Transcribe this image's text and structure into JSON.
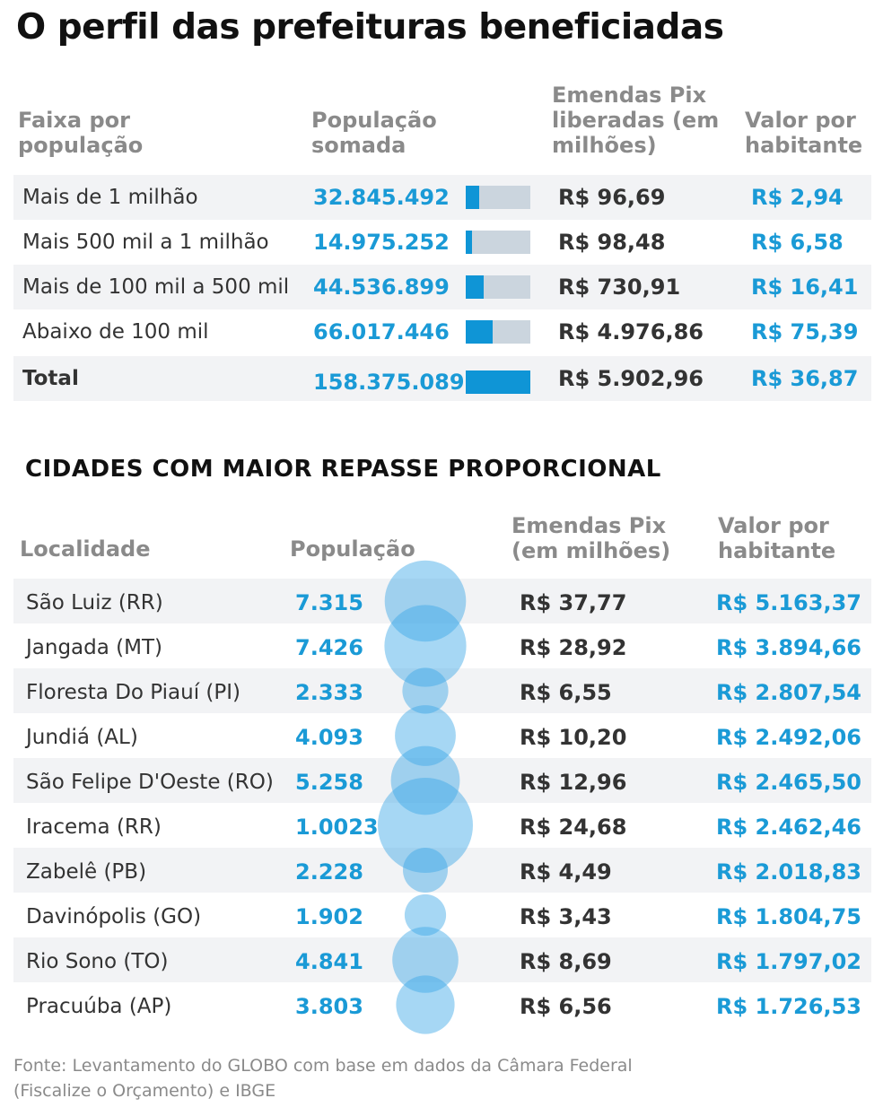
{
  "title": "O perfil das prefeituras beneficiadas",
  "table1": {
    "headers": [
      "Faixa por população",
      "População somada",
      "Emendas Pix liberadas (em milhões)",
      "Valor por habitante"
    ],
    "rows": [
      {
        "faixa": "Mais de 1 milhão",
        "populacao": "32.845.492",
        "emendas": "R$ 96,69",
        "valor": "R$ 2,94",
        "share": 0.207
      },
      {
        "faixa": "Mais 500 mil a 1 milhão",
        "populacao": "14.975.252",
        "emendas": "R$ 98,48",
        "valor": "R$ 6,58",
        "share": 0.095
      },
      {
        "faixa": "Mais de 100 mil a 500 mil",
        "populacao": "44.536.899",
        "emendas": "R$ 730,91",
        "valor": "R$ 16,41",
        "share": 0.281
      },
      {
        "faixa": "Abaixo de 100 mil",
        "populacao": "66.017.446",
        "emendas": "R$ 4.976,86",
        "valor": "R$ 75,39",
        "share": 0.417
      }
    ],
    "total": {
      "faixa": "Total",
      "populacao": "158.375.089",
      "emendas": "R$ 5.902,96",
      "valor": "R$ 36,87",
      "share": 1.0
    }
  },
  "section2_title": "CIDADES COM MAIOR REPASSE PROPORCIONAL",
  "table2": {
    "headers": [
      "Localidade",
      "População",
      "Emendas Pix (em milhões)",
      "Valor por habitante"
    ],
    "rows": [
      {
        "localidade": "São Luiz (RR)",
        "populacao": "7.315",
        "emendas": "R$ 37,77",
        "valor": "R$ 5.163,37"
      },
      {
        "localidade": "Jangada (MT)",
        "populacao": "7.426",
        "emendas": "R$ 28,92",
        "valor": "R$ 3.894,66"
      },
      {
        "localidade": "Floresta Do Piauí (PI)",
        "populacao": "2.333",
        "emendas": "R$ 6,55",
        "valor": "R$ 2.807,54"
      },
      {
        "localidade": "Jundiá (AL)",
        "populacao": "4.093",
        "emendas": "R$ 10,20",
        "valor": "R$ 2.492,06"
      },
      {
        "localidade": "São Felipe D'Oeste (RO)",
        "populacao": "5.258",
        "emendas": "R$ 12,96",
        "valor": "R$ 2.465,50"
      },
      {
        "localidade": "Iracema (RR)",
        "populacao": "1.0023",
        "emendas": "R$ 24,68",
        "valor": "R$ 2.462,46"
      },
      {
        "localidade": "Zabelê (PB)",
        "populacao": "2.228",
        "emendas": "R$ 4,49",
        "valor": "R$ 2.018,83"
      },
      {
        "localidade": "Davinópolis (GO)",
        "populacao": "1.902",
        "emendas": "R$ 3,43",
        "valor": "R$ 1.804,75"
      },
      {
        "localidade": "Rio Sono (TO)",
        "populacao": "4.841",
        "emendas": "R$ 8,69",
        "valor": "R$ 1.797,02"
      },
      {
        "localidade": "Pracuúba (AP)",
        "populacao": "3.803",
        "emendas": "R$ 6,56",
        "valor": "R$ 1.726,53"
      }
    ]
  },
  "source": [
    "Fonte: Levantamento do GLOBO com base em dados da Câmara Federal",
    "(Fiscalize o Orçamento) e IBGE"
  ],
  "colors": {
    "accent": "#1a9ad6",
    "bar": "#0f95d6",
    "bar_bg": "#cbd5de",
    "bubble": "#3aa6e6",
    "row_shade": "#f2f3f5"
  },
  "chart_data": [
    {
      "type": "bar",
      "categories": [
        "Mais de 1 milhão",
        "Mais 500 mil a 1 milhão",
        "Mais de 100 mil a 500 mil",
        "Abaixo de 100 mil",
        "Total"
      ],
      "values": [
        32845492,
        14975252,
        44536899,
        66017446,
        158375089
      ]
    },
    {
      "type": "scatter",
      "categories": [
        "São Luiz (RR)",
        "Jangada (MT)",
        "Floresta Do Piauí (PI)",
        "Jundiá (AL)",
        "São Felipe D'Oeste (RO)",
        "Iracema (RR)",
        "Zabelê (PB)",
        "Davinópolis (GO)",
        "Rio Sono (TO)",
        "Pracuúba (AP)"
      ],
      "values": [
        7315,
        7426,
        2333,
        4093,
        5258,
        10023,
        2228,
        1902,
        4841,
        3803
      ]
    }
  ]
}
